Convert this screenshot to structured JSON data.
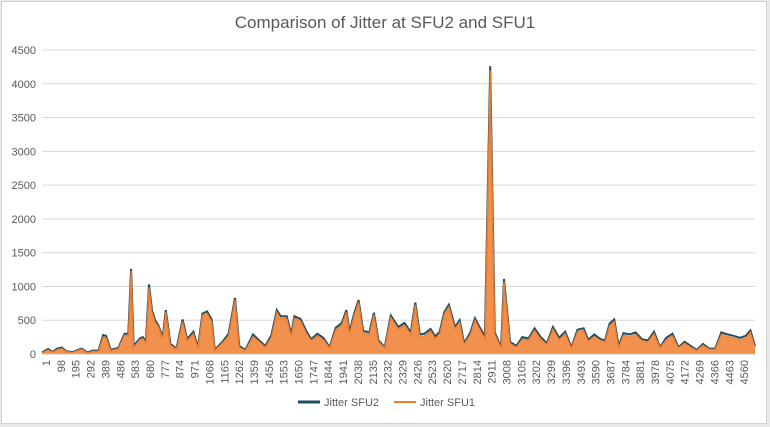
{
  "chart_data": {
    "type": "line",
    "title": "Comparison of Jitter at SFU2 and SFU1",
    "xlabel": "",
    "ylabel": "",
    "ylim": [
      0,
      4500
    ],
    "yticks": [
      0,
      500,
      1000,
      1500,
      2000,
      2500,
      3000,
      3500,
      4000,
      4500
    ],
    "x_tick_labels": [
      "1",
      "98",
      "195",
      "292",
      "389",
      "486",
      "583",
      "680",
      "777",
      "874",
      "971",
      "1068",
      "1165",
      "1262",
      "1359",
      "1456",
      "1553",
      "1650",
      "1747",
      "1844",
      "1941",
      "2038",
      "2135",
      "2232",
      "2329",
      "2426",
      "2523",
      "2620",
      "2717",
      "2814",
      "2911",
      "3008",
      "3105",
      "3202",
      "3299",
      "3396",
      "3493",
      "3590",
      "3687",
      "3784",
      "3881",
      "3978",
      "4075",
      "4172",
      "4269",
      "4366",
      "4463",
      "4560"
    ],
    "x_range": [
      1,
      4660
    ],
    "legend_position": "bottom",
    "grid": true,
    "series": [
      {
        "name": "Jitter SFU2",
        "color": "#1f4e64",
        "points": [
          [
            1,
            20
          ],
          [
            40,
            75
          ],
          [
            70,
            30
          ],
          [
            100,
            80
          ],
          [
            130,
            95
          ],
          [
            160,
            40
          ],
          [
            200,
            30
          ],
          [
            260,
            80
          ],
          [
            300,
            20
          ],
          [
            330,
            50
          ],
          [
            370,
            50
          ],
          [
            400,
            280
          ],
          [
            420,
            270
          ],
          [
            450,
            60
          ],
          [
            500,
            90
          ],
          [
            540,
            300
          ],
          [
            565,
            300
          ],
          [
            583,
            1260
          ],
          [
            600,
            120
          ],
          [
            640,
            230
          ],
          [
            660,
            250
          ],
          [
            680,
            180
          ],
          [
            700,
            1030
          ],
          [
            720,
            650
          ],
          [
            740,
            500
          ],
          [
            760,
            430
          ],
          [
            790,
            250
          ],
          [
            810,
            650
          ],
          [
            840,
            150
          ],
          [
            880,
            80
          ],
          [
            920,
            510
          ],
          [
            950,
            220
          ],
          [
            990,
            330
          ],
          [
            1020,
            100
          ],
          [
            1050,
            600
          ],
          [
            1080,
            630
          ],
          [
            1110,
            510
          ],
          [
            1130,
            60
          ],
          [
            1180,
            180
          ],
          [
            1220,
            300
          ],
          [
            1262,
            830
          ],
          [
            1290,
            120
          ],
          [
            1330,
            60
          ],
          [
            1380,
            290
          ],
          [
            1420,
            200
          ],
          [
            1460,
            120
          ],
          [
            1500,
            280
          ],
          [
            1535,
            650
          ],
          [
            1560,
            560
          ],
          [
            1600,
            560
          ],
          [
            1630,
            290
          ],
          [
            1650,
            560
          ],
          [
            1690,
            520
          ],
          [
            1730,
            330
          ],
          [
            1760,
            220
          ],
          [
            1800,
            300
          ],
          [
            1840,
            240
          ],
          [
            1880,
            100
          ],
          [
            1920,
            390
          ],
          [
            1960,
            460
          ],
          [
            1990,
            650
          ],
          [
            2010,
            330
          ],
          [
            2040,
            590
          ],
          [
            2070,
            800
          ],
          [
            2100,
            340
          ],
          [
            2140,
            320
          ],
          [
            2170,
            610
          ],
          [
            2200,
            200
          ],
          [
            2240,
            100
          ],
          [
            2280,
            570
          ],
          [
            2300,
            500
          ],
          [
            2330,
            400
          ],
          [
            2370,
            460
          ],
          [
            2410,
            320
          ],
          [
            2440,
            760
          ],
          [
            2470,
            290
          ],
          [
            2500,
            300
          ],
          [
            2540,
            370
          ],
          [
            2570,
            260
          ],
          [
            2600,
            330
          ],
          [
            2630,
            620
          ],
          [
            2660,
            730
          ],
          [
            2700,
            400
          ],
          [
            2730,
            500
          ],
          [
            2760,
            160
          ],
          [
            2800,
            320
          ],
          [
            2830,
            530
          ],
          [
            2860,
            400
          ],
          [
            2895,
            260
          ],
          [
            2930,
            4260
          ],
          [
            2960,
            320
          ],
          [
            3000,
            100
          ],
          [
            3020,
            1110
          ],
          [
            3060,
            180
          ],
          [
            3100,
            120
          ],
          [
            3140,
            250
          ],
          [
            3180,
            230
          ],
          [
            3220,
            380
          ],
          [
            3260,
            250
          ],
          [
            3300,
            160
          ],
          [
            3340,
            400
          ],
          [
            3380,
            240
          ],
          [
            3420,
            330
          ],
          [
            3460,
            100
          ],
          [
            3500,
            360
          ],
          [
            3540,
            380
          ],
          [
            3570,
            210
          ],
          [
            3610,
            290
          ],
          [
            3650,
            220
          ],
          [
            3680,
            200
          ],
          [
            3710,
            450
          ],
          [
            3740,
            510
          ],
          [
            3770,
            120
          ],
          [
            3800,
            310
          ],
          [
            3840,
            290
          ],
          [
            3880,
            320
          ],
          [
            3920,
            220
          ],
          [
            3960,
            200
          ],
          [
            4000,
            330
          ],
          [
            4040,
            100
          ],
          [
            4080,
            240
          ],
          [
            4120,
            300
          ],
          [
            4160,
            100
          ],
          [
            4200,
            180
          ],
          [
            4240,
            120
          ],
          [
            4280,
            60
          ],
          [
            4320,
            150
          ],
          [
            4360,
            80
          ],
          [
            4400,
            80
          ],
          [
            4440,
            320
          ],
          [
            4480,
            290
          ],
          [
            4520,
            270
          ],
          [
            4560,
            240
          ],
          [
            4600,
            270
          ],
          [
            4630,
            350
          ],
          [
            4660,
            120
          ]
        ]
      },
      {
        "name": "Jitter SFU1",
        "color": "#f07d2e",
        "points": [
          [
            1,
            15
          ],
          [
            40,
            60
          ],
          [
            70,
            25
          ],
          [
            100,
            65
          ],
          [
            130,
            80
          ],
          [
            160,
            35
          ],
          [
            200,
            25
          ],
          [
            260,
            70
          ],
          [
            300,
            15
          ],
          [
            330,
            40
          ],
          [
            370,
            40
          ],
          [
            400,
            250
          ],
          [
            420,
            240
          ],
          [
            450,
            50
          ],
          [
            500,
            80
          ],
          [
            540,
            280
          ],
          [
            565,
            270
          ],
          [
            583,
            1230
          ],
          [
            600,
            100
          ],
          [
            640,
            210
          ],
          [
            660,
            230
          ],
          [
            680,
            160
          ],
          [
            700,
            990
          ],
          [
            720,
            620
          ],
          [
            740,
            470
          ],
          [
            760,
            410
          ],
          [
            790,
            230
          ],
          [
            810,
            620
          ],
          [
            840,
            130
          ],
          [
            880,
            70
          ],
          [
            920,
            480
          ],
          [
            950,
            200
          ],
          [
            990,
            300
          ],
          [
            1020,
            90
          ],
          [
            1050,
            570
          ],
          [
            1080,
            600
          ],
          [
            1110,
            480
          ],
          [
            1130,
            50
          ],
          [
            1180,
            160
          ],
          [
            1220,
            270
          ],
          [
            1262,
            800
          ],
          [
            1290,
            100
          ],
          [
            1330,
            50
          ],
          [
            1380,
            260
          ],
          [
            1420,
            180
          ],
          [
            1460,
            100
          ],
          [
            1500,
            250
          ],
          [
            1535,
            620
          ],
          [
            1560,
            530
          ],
          [
            1600,
            530
          ],
          [
            1630,
            260
          ],
          [
            1650,
            530
          ],
          [
            1690,
            490
          ],
          [
            1730,
            300
          ],
          [
            1760,
            200
          ],
          [
            1800,
            270
          ],
          [
            1840,
            210
          ],
          [
            1880,
            90
          ],
          [
            1920,
            360
          ],
          [
            1960,
            430
          ],
          [
            1990,
            620
          ],
          [
            2010,
            300
          ],
          [
            2040,
            560
          ],
          [
            2070,
            770
          ],
          [
            2100,
            310
          ],
          [
            2140,
            290
          ],
          [
            2170,
            580
          ],
          [
            2200,
            180
          ],
          [
            2240,
            90
          ],
          [
            2280,
            540
          ],
          [
            2300,
            470
          ],
          [
            2330,
            370
          ],
          [
            2370,
            430
          ],
          [
            2410,
            290
          ],
          [
            2440,
            730
          ],
          [
            2470,
            260
          ],
          [
            2500,
            270
          ],
          [
            2540,
            340
          ],
          [
            2570,
            230
          ],
          [
            2600,
            300
          ],
          [
            2630,
            590
          ],
          [
            2660,
            700
          ],
          [
            2700,
            370
          ],
          [
            2730,
            470
          ],
          [
            2760,
            140
          ],
          [
            2800,
            290
          ],
          [
            2830,
            500
          ],
          [
            2860,
            370
          ],
          [
            2895,
            230
          ],
          [
            2930,
            4200
          ],
          [
            2960,
            290
          ],
          [
            3000,
            90
          ],
          [
            3020,
            1070
          ],
          [
            3060,
            160
          ],
          [
            3100,
            100
          ],
          [
            3140,
            220
          ],
          [
            3180,
            210
          ],
          [
            3220,
            350
          ],
          [
            3260,
            220
          ],
          [
            3300,
            140
          ],
          [
            3340,
            370
          ],
          [
            3380,
            210
          ],
          [
            3420,
            300
          ],
          [
            3460,
            90
          ],
          [
            3500,
            330
          ],
          [
            3540,
            350
          ],
          [
            3570,
            190
          ],
          [
            3610,
            260
          ],
          [
            3650,
            200
          ],
          [
            3680,
            180
          ],
          [
            3710,
            420
          ],
          [
            3740,
            480
          ],
          [
            3770,
            100
          ],
          [
            3800,
            280
          ],
          [
            3840,
            260
          ],
          [
            3880,
            290
          ],
          [
            3920,
            200
          ],
          [
            3960,
            180
          ],
          [
            4000,
            300
          ],
          [
            4040,
            90
          ],
          [
            4080,
            210
          ],
          [
            4120,
            270
          ],
          [
            4160,
            90
          ],
          [
            4200,
            160
          ],
          [
            4240,
            100
          ],
          [
            4280,
            50
          ],
          [
            4320,
            130
          ],
          [
            4360,
            70
          ],
          [
            4400,
            70
          ],
          [
            4440,
            290
          ],
          [
            4480,
            260
          ],
          [
            4520,
            240
          ],
          [
            4560,
            210
          ],
          [
            4600,
            240
          ],
          [
            4630,
            320
          ],
          [
            4660,
            100
          ]
        ]
      }
    ]
  }
}
